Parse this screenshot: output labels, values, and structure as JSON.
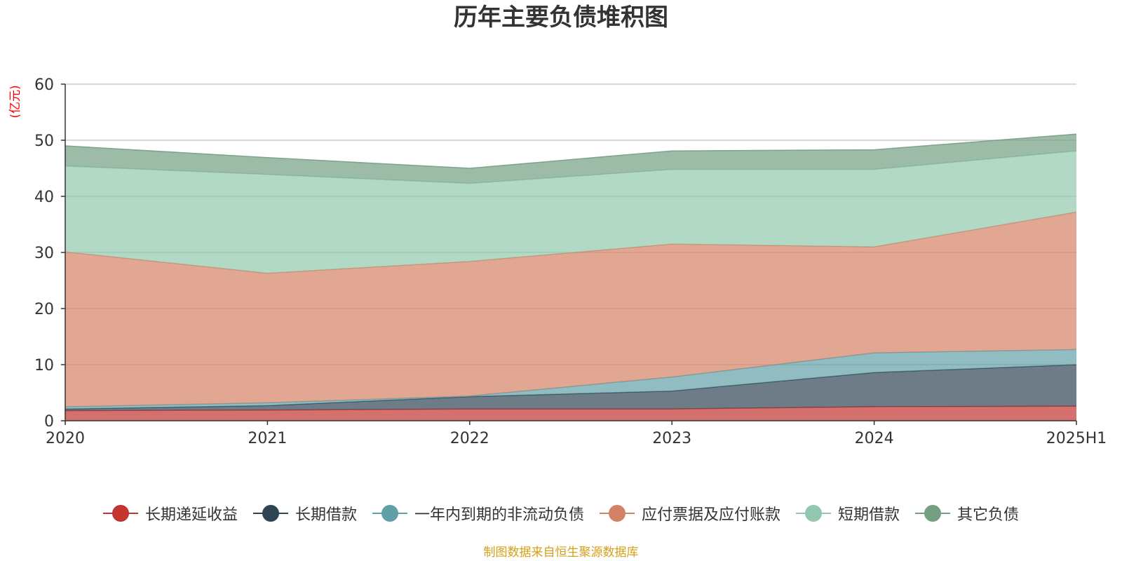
{
  "chart_data": {
    "type": "area",
    "stacked": true,
    "title": "历年主要负债堆积图",
    "unit_label": "(亿元)",
    "categories": [
      "2020",
      "2021",
      "2022",
      "2023",
      "2024",
      "2025H1"
    ],
    "ylim": [
      0,
      60
    ],
    "yticks": [
      0,
      10,
      20,
      30,
      40,
      50,
      60
    ],
    "grid": true,
    "legend_position": "bottom",
    "series": [
      {
        "name": "长期递延收益",
        "color": "#c23531",
        "values": [
          1.8,
          1.9,
          2.1,
          2.1,
          2.5,
          2.6
        ]
      },
      {
        "name": "长期借款",
        "color": "#2f4554",
        "values": [
          0.3,
          0.8,
          2.2,
          3.2,
          6.1,
          7.4
        ]
      },
      {
        "name": "一年内到期的非流动负债",
        "color": "#61a0a8",
        "values": [
          0.4,
          0.5,
          0.1,
          2.5,
          3.5,
          2.7
        ]
      },
      {
        "name": "应付票据及应付账款",
        "color": "#d48265",
        "values": [
          27.6,
          23.1,
          24.0,
          23.7,
          18.9,
          24.5
        ]
      },
      {
        "name": "短期借款",
        "color": "#91c7ae",
        "values": [
          15.3,
          17.6,
          13.9,
          13.3,
          13.8,
          10.9
        ]
      },
      {
        "name": "其它负债",
        "color": "#749f83",
        "values": [
          3.6,
          3.0,
          2.7,
          3.3,
          3.5,
          3.0
        ]
      }
    ]
  },
  "source_note": "制图数据来自恒生聚源数据库"
}
